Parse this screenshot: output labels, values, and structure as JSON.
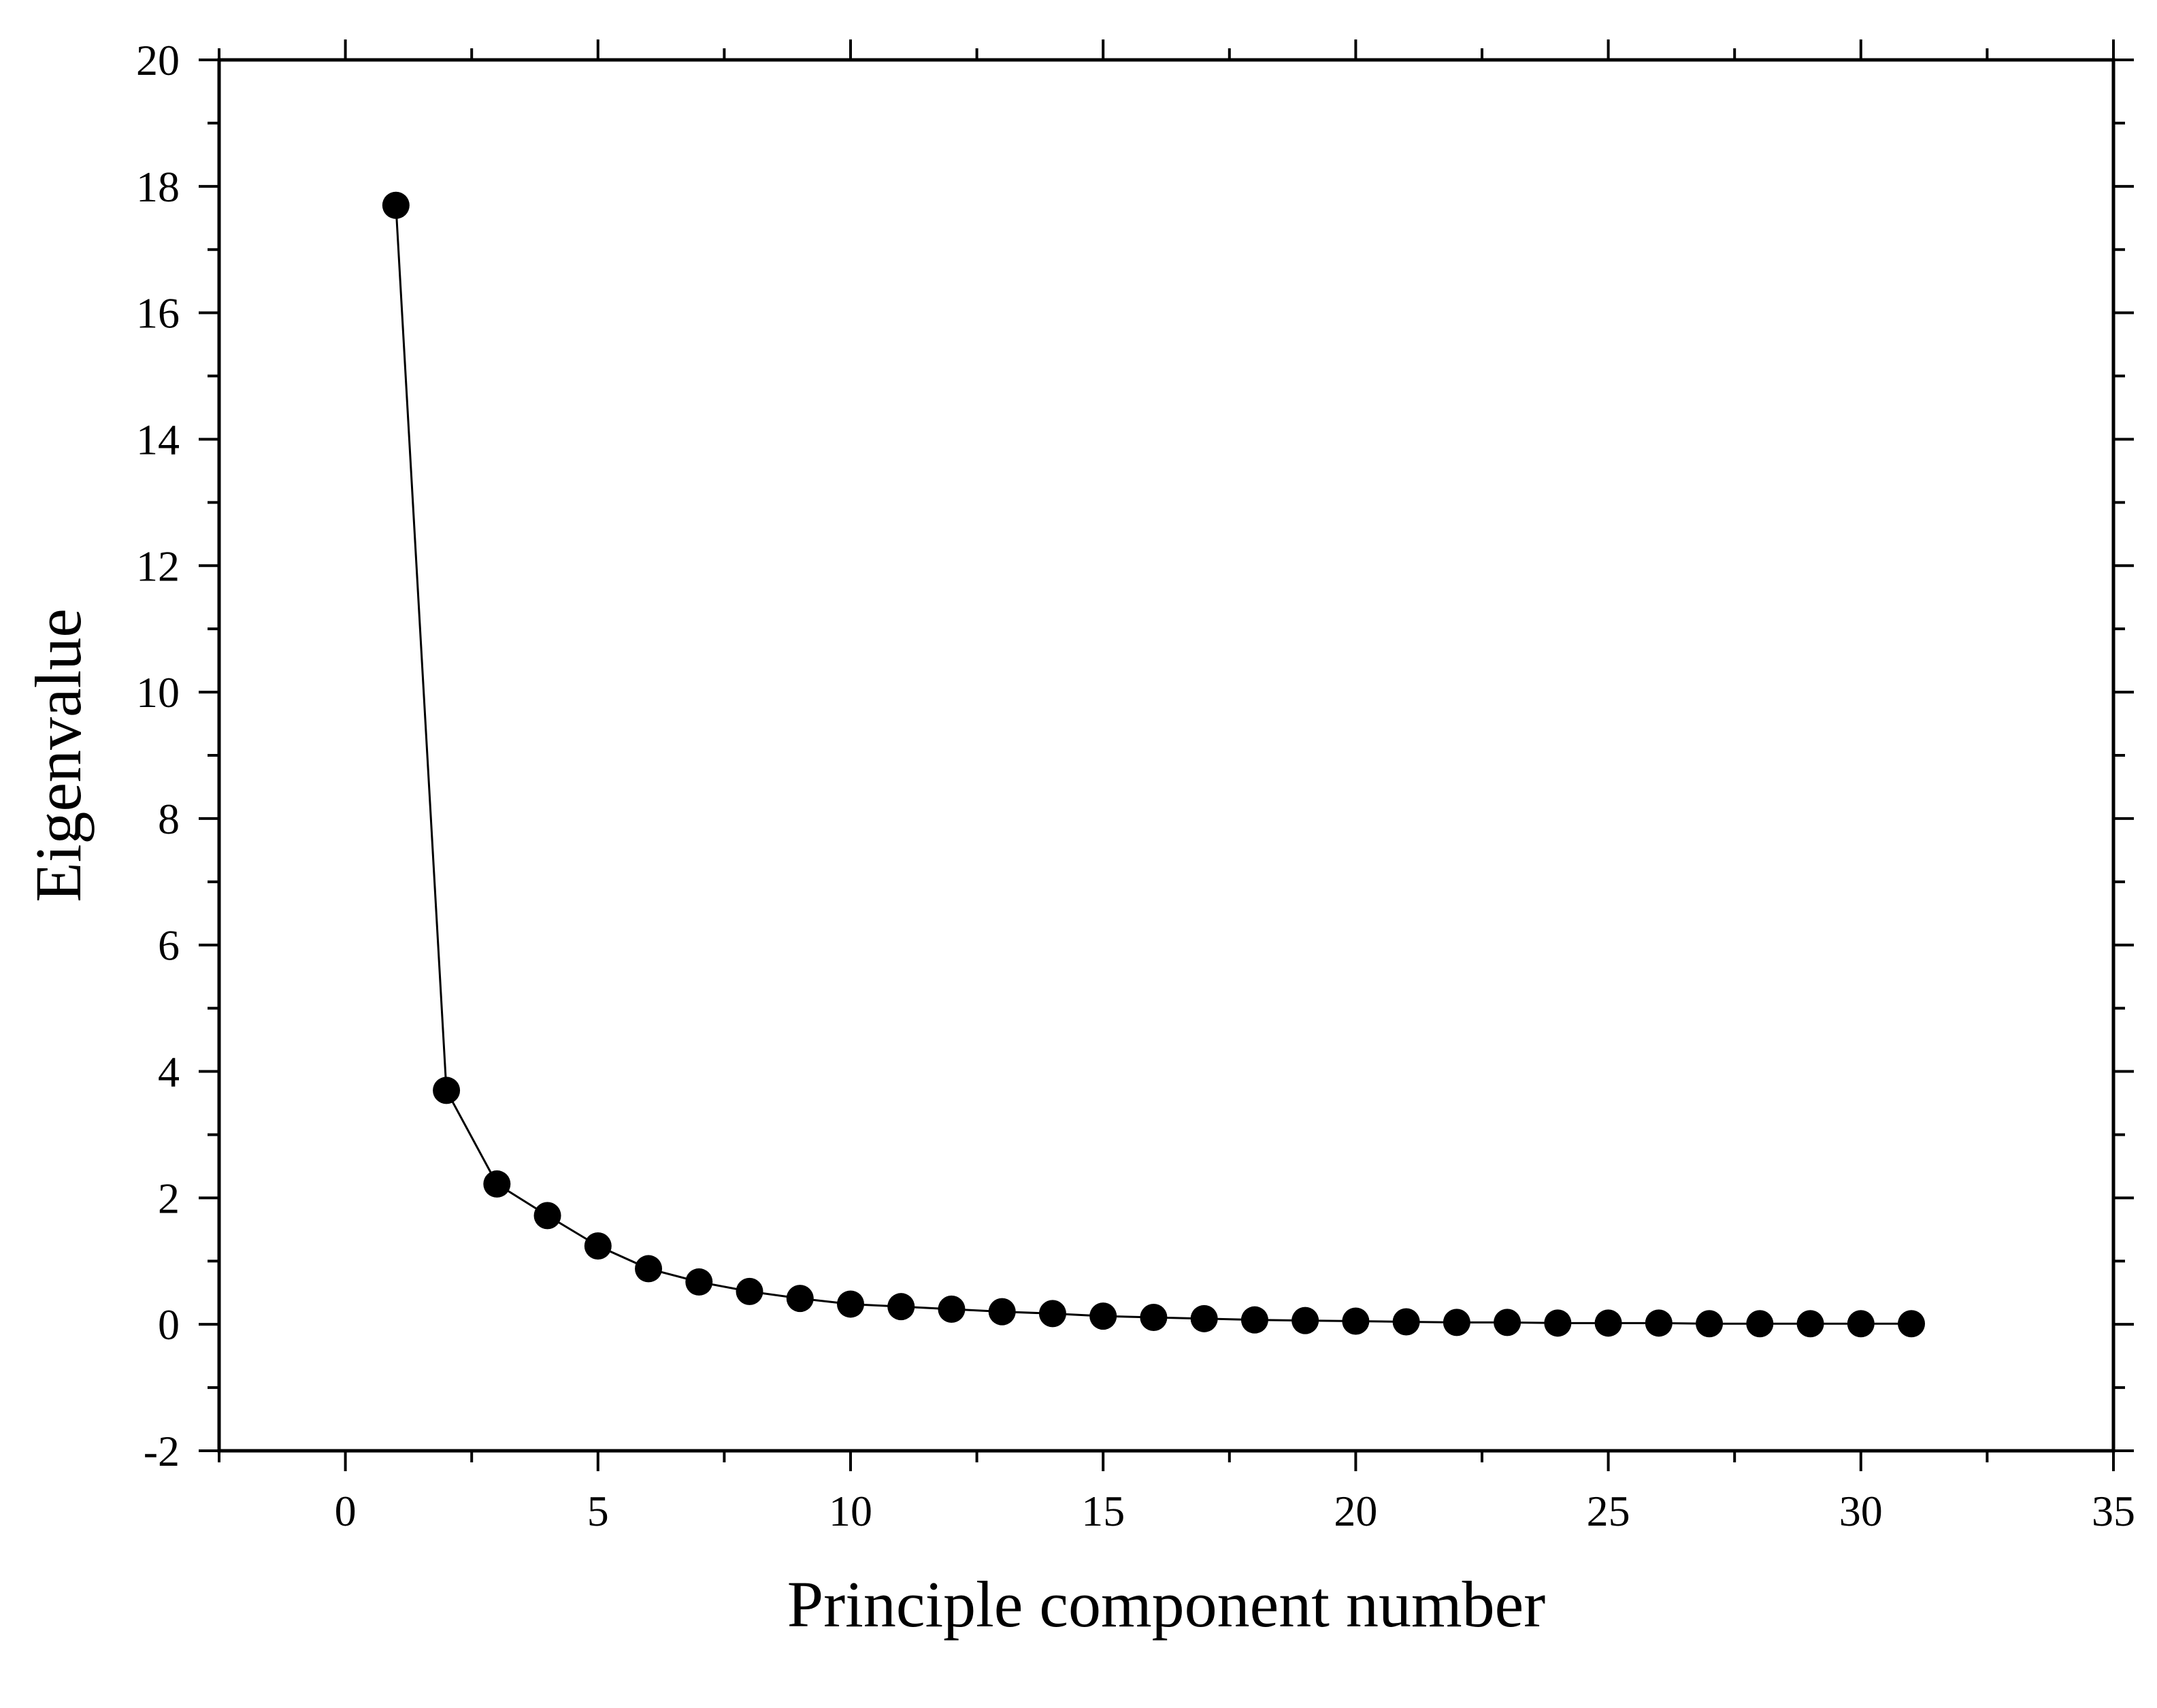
{
  "chart_data": {
    "type": "line",
    "title": "",
    "xlabel": "Principle component number",
    "ylabel": "Eigenvalue",
    "xlim": [
      -2.5,
      35
    ],
    "ylim": [
      -2,
      20
    ],
    "x_ticks": [
      0,
      5,
      10,
      15,
      20,
      25,
      30,
      35
    ],
    "y_ticks": [
      -2,
      0,
      2,
      4,
      6,
      8,
      10,
      12,
      14,
      16,
      18,
      20
    ],
    "grid": false,
    "legend": "none",
    "series": [
      {
        "marker": "filled-circle",
        "color": "#000000",
        "x": [
          1,
          2,
          3,
          4,
          5,
          6,
          7,
          8,
          9,
          10,
          11,
          12,
          13,
          14,
          15,
          16,
          17,
          18,
          19,
          20,
          21,
          22,
          23,
          24,
          25,
          26,
          27,
          28,
          29,
          30,
          31
        ],
        "y": [
          17.7,
          3.7,
          2.22,
          1.72,
          1.24,
          0.88,
          0.67,
          0.52,
          0.41,
          0.32,
          0.28,
          0.24,
          0.2,
          0.17,
          0.13,
          0.11,
          0.09,
          0.07,
          0.06,
          0.05,
          0.04,
          0.03,
          0.03,
          0.02,
          0.02,
          0.02,
          0.01,
          0.01,
          0.01,
          0.01,
          0.01
        ]
      }
    ]
  }
}
